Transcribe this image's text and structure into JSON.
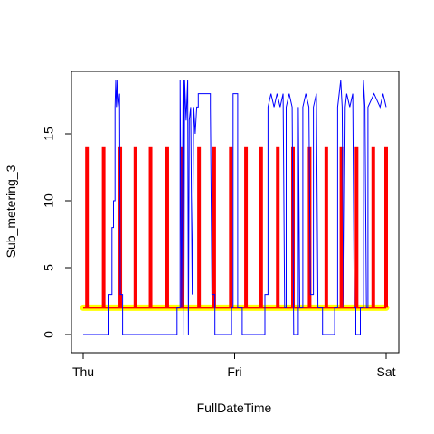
{
  "chart_data": {
    "type": "line",
    "title": "",
    "xlabel": "FullDateTime",
    "ylabel": "Sub_metering_3",
    "x_unit": "days from Thu 00:00",
    "xlim": [
      0,
      2
    ],
    "ylim": [
      0,
      19
    ],
    "x_ticks": [
      {
        "value": 0,
        "label": "Thu"
      },
      {
        "value": 1,
        "label": "Fri"
      },
      {
        "value": 2,
        "label": "Sat"
      }
    ],
    "y_ticks": [
      {
        "value": 0,
        "label": "0"
      },
      {
        "value": 5,
        "label": "5"
      },
      {
        "value": 10,
        "label": "10"
      },
      {
        "value": 15,
        "label": "15"
      }
    ],
    "grid": false,
    "legend": "none",
    "series": [
      {
        "color": "#ffff00",
        "line_style": "thick-constant",
        "points": [
          [
            0,
            2
          ],
          [
            2,
            2
          ]
        ]
      },
      {
        "color": "#ff0000",
        "line_style": "periodic-spikes",
        "baseline": 2,
        "spike_height": 14,
        "spike_x": [
          0.025,
          0.135,
          0.245,
          0.345,
          0.445,
          0.555,
          0.655,
          0.765,
          0.865,
          0.975,
          1.075,
          1.175,
          1.285,
          1.385,
          1.495,
          1.605,
          1.705,
          1.805,
          1.915,
          2.0
        ]
      },
      {
        "color": "#0000ff",
        "line_style": "step",
        "points": [
          [
            0,
            0
          ],
          [
            0.17,
            0
          ],
          [
            0.17,
            3
          ],
          [
            0.19,
            3
          ],
          [
            0.19,
            8
          ],
          [
            0.2,
            8
          ],
          [
            0.2,
            10
          ],
          [
            0.21,
            10
          ],
          [
            0.21,
            17
          ],
          [
            0.215,
            19
          ],
          [
            0.22,
            17
          ],
          [
            0.225,
            19
          ],
          [
            0.23,
            17
          ],
          [
            0.24,
            18
          ],
          [
            0.245,
            3
          ],
          [
            0.26,
            3
          ],
          [
            0.26,
            0
          ],
          [
            0.62,
            0
          ],
          [
            0.62,
            2
          ],
          [
            0.64,
            2
          ],
          [
            0.64,
            19
          ],
          [
            0.65,
            2
          ],
          [
            0.66,
            19
          ],
          [
            0.665,
            0
          ],
          [
            0.67,
            19
          ],
          [
            0.68,
            16
          ],
          [
            0.69,
            19
          ],
          [
            0.695,
            0
          ],
          [
            0.7,
            16
          ],
          [
            0.71,
            17
          ],
          [
            0.72,
            3
          ],
          [
            0.73,
            17
          ],
          [
            0.74,
            15
          ],
          [
            0.75,
            17
          ],
          [
            0.76,
            17
          ],
          [
            0.76,
            18
          ],
          [
            0.84,
            18
          ],
          [
            0.84,
            17
          ],
          [
            0.85,
            3
          ],
          [
            0.87,
            3
          ],
          [
            0.87,
            0
          ],
          [
            0.98,
            0
          ],
          [
            0.98,
            2
          ],
          [
            0.99,
            2
          ],
          [
            0.99,
            18
          ],
          [
            1.02,
            18
          ],
          [
            1.02,
            2
          ],
          [
            1.05,
            2
          ],
          [
            1.05,
            0
          ],
          [
            1.2,
            0
          ],
          [
            1.2,
            3
          ],
          [
            1.22,
            3
          ],
          [
            1.22,
            17
          ],
          [
            1.24,
            18
          ],
          [
            1.26,
            17
          ],
          [
            1.28,
            18
          ],
          [
            1.3,
            17
          ],
          [
            1.32,
            18
          ],
          [
            1.33,
            2
          ],
          [
            1.34,
            2
          ],
          [
            1.34,
            17
          ],
          [
            1.36,
            18
          ],
          [
            1.38,
            17
          ],
          [
            1.39,
            0
          ],
          [
            1.42,
            0
          ],
          [
            1.42,
            17
          ],
          [
            1.43,
            2
          ],
          [
            1.45,
            2
          ],
          [
            1.45,
            17
          ],
          [
            1.47,
            18
          ],
          [
            1.49,
            17
          ],
          [
            1.5,
            3
          ],
          [
            1.52,
            3
          ],
          [
            1.52,
            17
          ],
          [
            1.54,
            18
          ],
          [
            1.55,
            2
          ],
          [
            1.58,
            2
          ],
          [
            1.58,
            0
          ],
          [
            1.66,
            0
          ],
          [
            1.66,
            2
          ],
          [
            1.68,
            2
          ],
          [
            1.68,
            17
          ],
          [
            1.7,
            19
          ],
          [
            1.71,
            17
          ],
          [
            1.72,
            2
          ],
          [
            1.73,
            17
          ],
          [
            1.74,
            18
          ],
          [
            1.76,
            17
          ],
          [
            1.78,
            18
          ],
          [
            1.79,
            2
          ],
          [
            1.8,
            2
          ],
          [
            1.8,
            0
          ],
          [
            1.83,
            0
          ],
          [
            1.83,
            2
          ],
          [
            1.85,
            2
          ],
          [
            1.85,
            19
          ],
          [
            1.86,
            17
          ],
          [
            1.87,
            2
          ],
          [
            1.88,
            2
          ],
          [
            1.88,
            17
          ],
          [
            1.92,
            18
          ],
          [
            1.96,
            17
          ],
          [
            1.98,
            18
          ],
          [
            2,
            17
          ]
        ]
      }
    ]
  }
}
